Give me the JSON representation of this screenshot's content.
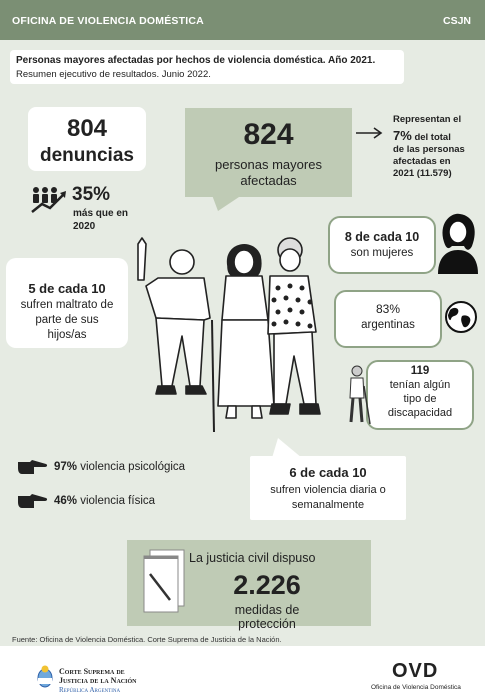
{
  "header": {
    "office": "OFICINA DE VIOLENCIA DOMÉSTICA",
    "org": "CSJN"
  },
  "subtitle": {
    "line1": "Personas mayores afectadas por hechos de violencia doméstica. Año 2021.",
    "line2": "Resumen ejecutivo de resultados. Junio 2022."
  },
  "denuncias": {
    "value": "804",
    "label": "denuncias"
  },
  "increase": {
    "value": "35%",
    "label_line1": "más que en",
    "label_line2": "2020"
  },
  "affected": {
    "value": "824",
    "label_line1": "personas mayores",
    "label_line2": "afectadas"
  },
  "share": {
    "line1": "Representan el",
    "pct": "7%",
    "line2": "del total",
    "line3": "de las personas",
    "line4": "afectadas en",
    "line5": "2021 (11.579)"
  },
  "women": {
    "line1": "8 de cada 10",
    "line2": "son mujeres"
  },
  "argentinas": {
    "line1": "83%",
    "line2": "argentinas"
  },
  "disability": {
    "line1": "119",
    "line2": "tenían algún",
    "line3": "tipo de",
    "line4": "discapacidad"
  },
  "children": {
    "line1": "5 de cada 10",
    "line2": "sufren maltrato de",
    "line3": "parte de sus",
    "line4": "hijos/as"
  },
  "violence_types": [
    {
      "pct": "97%",
      "label": "violencia psicológica"
    },
    {
      "pct": "46%",
      "label": "violencia física"
    }
  ],
  "frequency": {
    "line1": "6 de cada 10",
    "line2": "sufren violencia diaria o",
    "line3": "semanalmente"
  },
  "measures": {
    "line1": "La justicia civil dispuso",
    "value": "2.226",
    "line2": "medidas de protección"
  },
  "source": "Fuente: Oficina de Violencia Doméstica. Corte Suprema de Justicia de la Nación.",
  "footer": {
    "court_line1": "Corte Suprema de",
    "court_line2": "Justicia de la Nación",
    "court_line3": "República Argentina",
    "ovd_logo": "OVD",
    "ovd_name": "Oficina de Violencia Doméstica"
  },
  "colors": {
    "topbar": "#7b8f74",
    "background": "#e6ebe3",
    "accent_box": "#bfcbb5",
    "outline": "#8fa386",
    "footer_blue": "#2e5fa8"
  },
  "icons": [
    "people-growth-icon",
    "arrow-right-icon",
    "woman-avatar-icon",
    "globe-icon",
    "elderly-cane-icon",
    "pointing-hand-icon",
    "document-pen-icon",
    "argentina-emblem-icon"
  ]
}
